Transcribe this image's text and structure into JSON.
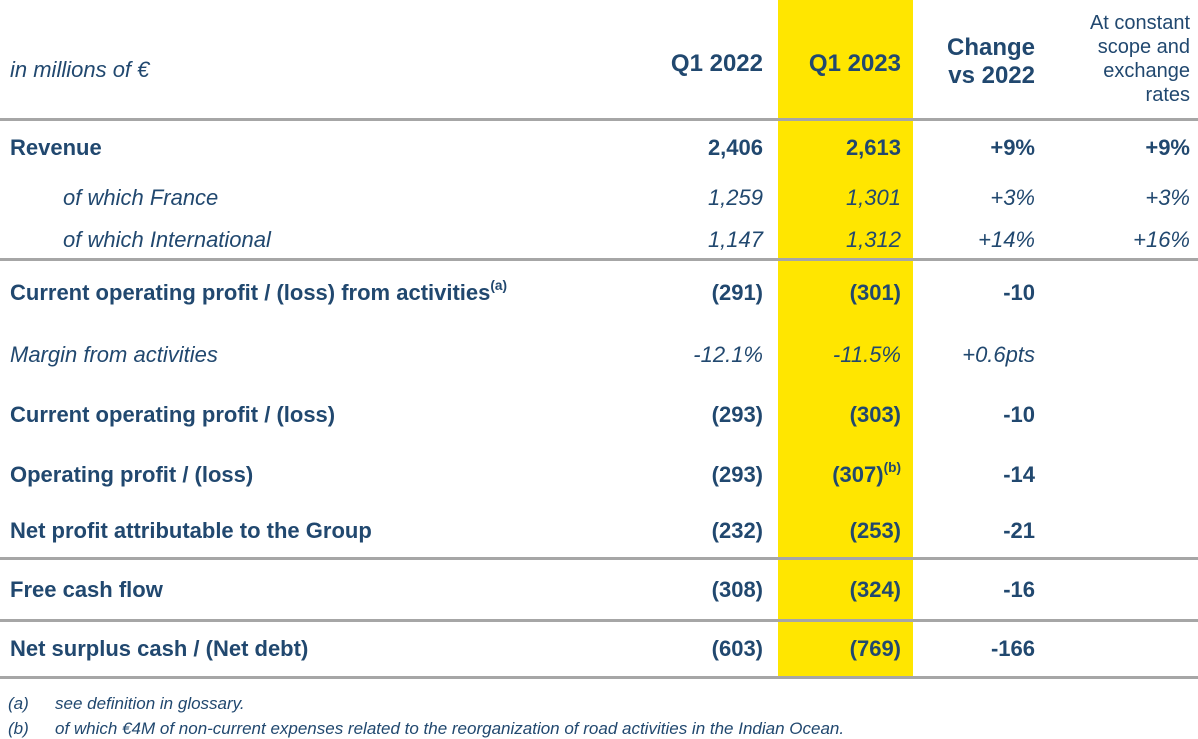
{
  "header": {
    "unit_label": "in millions of €",
    "columns": [
      {
        "id": "q1_2022",
        "label": "Q1 2022",
        "highlighted": false
      },
      {
        "id": "q1_2023",
        "label": "Q1 2023",
        "highlighted": true
      },
      {
        "id": "change_vs_2022",
        "label": "Change\nvs 2022",
        "highlighted": false
      },
      {
        "id": "constant_scope",
        "label": "At constant\nscope and\nexchange\nrates",
        "highlighted": false
      }
    ]
  },
  "rows": [
    {
      "label": "Revenue",
      "q1_2022": "2,406",
      "q1_2023": "2,613",
      "change": "+9%",
      "constant": "+9%"
    },
    {
      "label": "of which France",
      "q1_2022": "1,259",
      "q1_2023": "1,301",
      "change": "+3%",
      "constant": "+3%"
    },
    {
      "label": "of which International",
      "q1_2022": "1,147",
      "q1_2023": "1,312",
      "change": "+14%",
      "constant": "+16%"
    },
    {
      "label": "Current operating profit / (loss) from activities",
      "label_sup": "(a)",
      "q1_2022": "(291)",
      "q1_2023": "(301)",
      "change": "-10",
      "constant": ""
    },
    {
      "label": "Margin from activities",
      "q1_2022": "-12.1%",
      "q1_2023": "-11.5%",
      "change": "+0.6pts",
      "constant": ""
    },
    {
      "label": "Current operating profit / (loss)",
      "q1_2022": "(293)",
      "q1_2023": "(303)",
      "change": "-10",
      "constant": ""
    },
    {
      "label": "Operating profit / (loss)",
      "q1_2022": "(293)",
      "q1_2023": "(307)",
      "q1_2023_sup": "(b)",
      "change": "-14",
      "constant": ""
    },
    {
      "label": "Net profit attributable to the Group",
      "q1_2022": "(232)",
      "q1_2023": "(253)",
      "change": "-21",
      "constant": ""
    },
    {
      "label": "Free cash flow",
      "q1_2022": "(308)",
      "q1_2023": "(324)",
      "change": "-16",
      "constant": ""
    },
    {
      "label": "Net surplus cash / (Net debt)",
      "q1_2022": "(603)",
      "q1_2023": "(769)",
      "change": "-166",
      "constant": ""
    }
  ],
  "footnotes": [
    {
      "marker": "(a)",
      "text": "see definition in glossary."
    },
    {
      "marker": "(b)",
      "text": "of which €4M of non-current expenses related to the reorganization of road activities in the Indian Ocean."
    }
  ],
  "colors": {
    "text_blue": "#21486F",
    "highlight_yellow": "#FFE600",
    "divider_gray": "#A6A6A6"
  }
}
